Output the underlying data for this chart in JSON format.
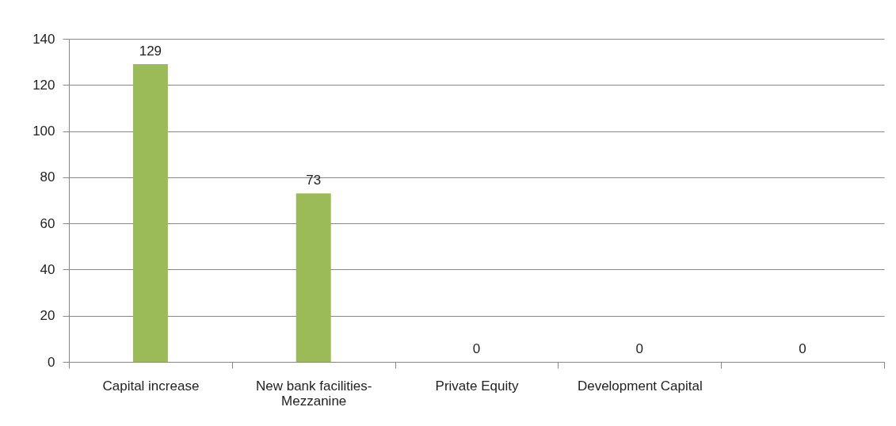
{
  "chart_data": {
    "type": "bar",
    "categories": [
      "Capital increase",
      "New bank facilities-Mezzanine",
      "Private Equity",
      "Development Capital",
      null
    ],
    "values": [
      129,
      73,
      0,
      0,
      0
    ],
    "color": "#9bbb59",
    "ylim": [
      0,
      140
    ],
    "yticks": [
      0,
      20,
      40,
      60,
      80,
      100,
      120,
      140
    ],
    "grid": "y",
    "data_labels": true
  }
}
